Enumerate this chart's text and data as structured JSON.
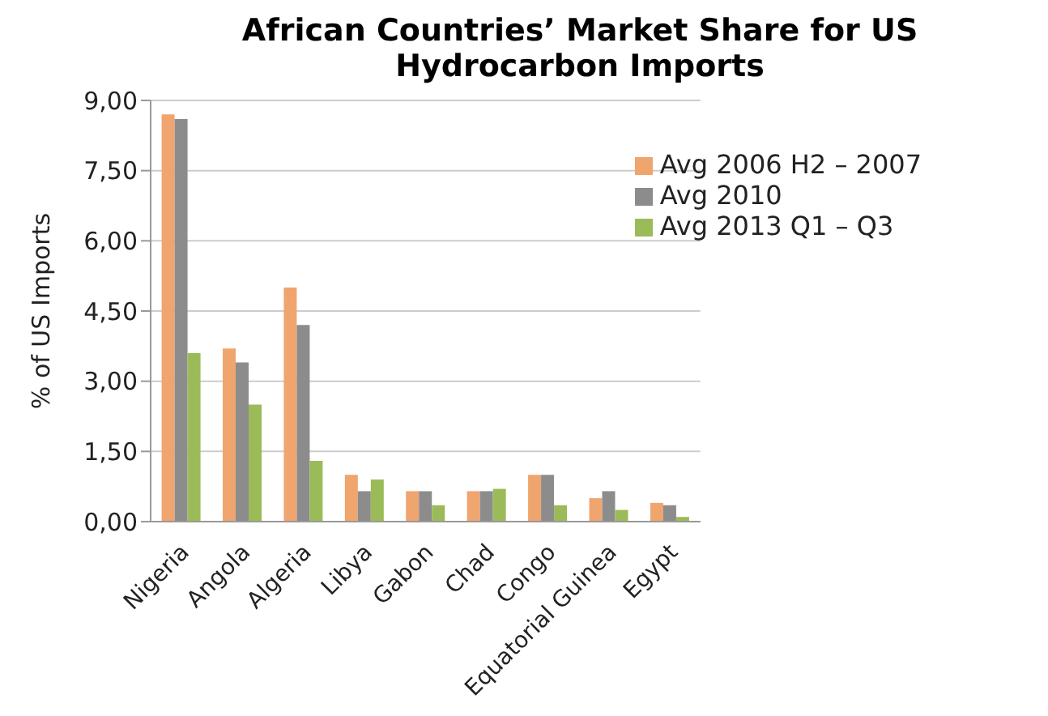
{
  "chart_data": {
    "type": "bar",
    "title": "African Countries’ Market Share for US Hydrocarbon Imports",
    "ylabel": "% of US Imports",
    "categories": [
      "Nigeria",
      "Angola",
      "Algeria",
      "Libya",
      "Gabon",
      "Chad",
      "Congo",
      "Equatorial Guinea",
      "Egypt"
    ],
    "series": [
      {
        "name": "Avg 2006 H2 – 2007",
        "color": "#f0a46e",
        "values": [
          8.7,
          3.7,
          5.0,
          1.0,
          0.65,
          0.65,
          1.0,
          0.5,
          0.4
        ]
      },
      {
        "name": "Avg 2010",
        "color": "#8c8c8c",
        "values": [
          8.6,
          3.4,
          4.2,
          0.65,
          0.65,
          0.65,
          1.0,
          0.65,
          0.35
        ]
      },
      {
        "name": "Avg 2013 Q1 – Q3",
        "color": "#9bbb59",
        "values": [
          3.6,
          2.5,
          1.3,
          0.9,
          0.35,
          0.7,
          0.35,
          0.25,
          0.1
        ]
      }
    ],
    "ylim": [
      0,
      9
    ],
    "yticks": [
      {
        "value": 0,
        "label": "0,00"
      },
      {
        "value": 1.5,
        "label": "1,50"
      },
      {
        "value": 3,
        "label": "3,00"
      },
      {
        "value": 4.5,
        "label": "4,50"
      },
      {
        "value": 6,
        "label": "6,00"
      },
      {
        "value": 7.5,
        "label": "7,50"
      },
      {
        "value": 9,
        "label": "9,00"
      }
    ],
    "grid": "y",
    "legend": "top right"
  }
}
